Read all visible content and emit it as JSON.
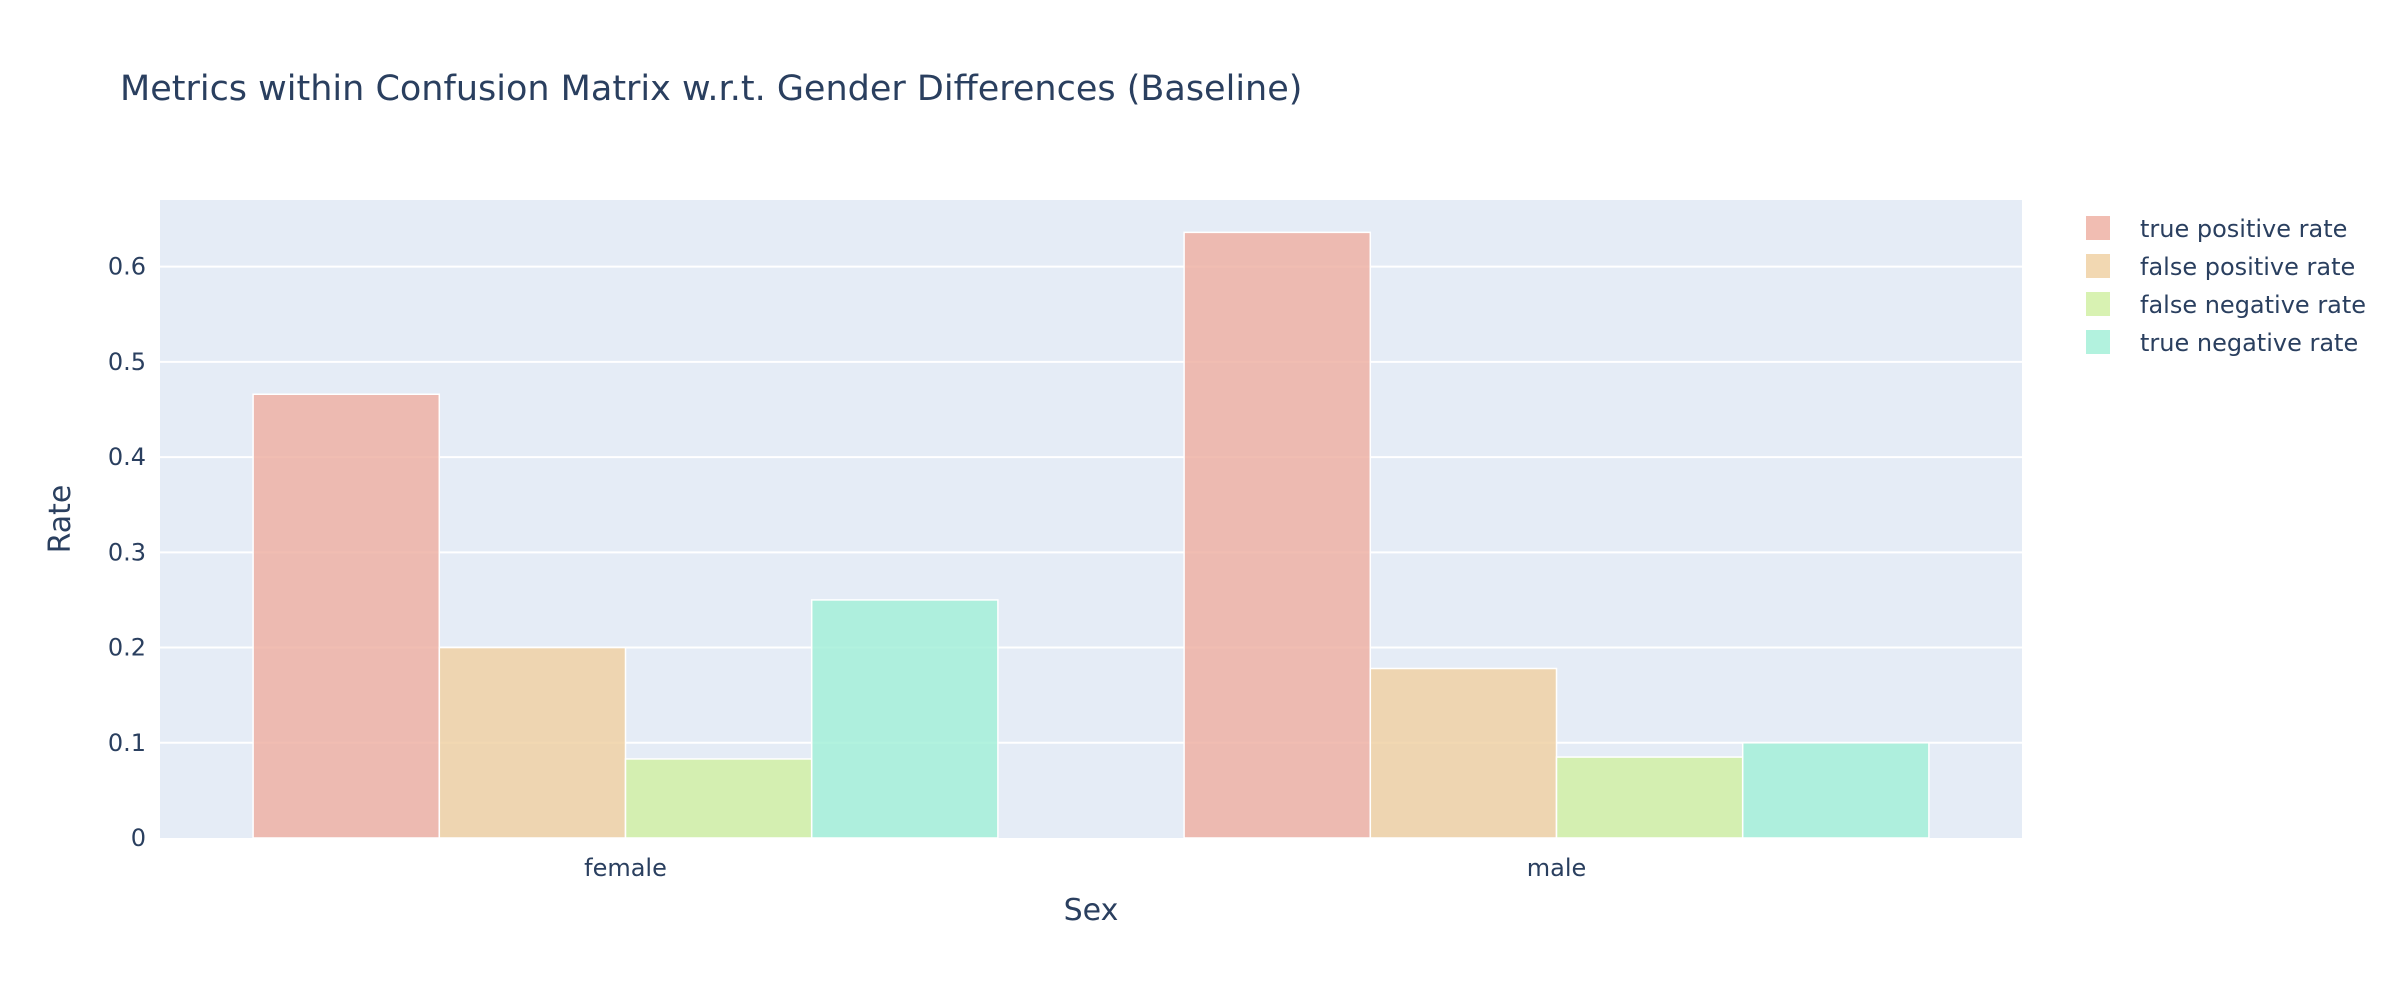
{
  "chart_data": {
    "type": "bar",
    "title": "Metrics within Confusion Matrix w.r.t. Gender Differences (Baseline)",
    "xlabel": "Sex",
    "ylabel": "Rate",
    "categories": [
      "female",
      "male"
    ],
    "ylim": [
      0,
      0.67
    ],
    "yticks": [
      "0",
      "0.1",
      "0.2",
      "0.3",
      "0.4",
      "0.5",
      "0.6"
    ],
    "grid": true,
    "legend_position": "top-right",
    "series": [
      {
        "name": "true positive rate",
        "values": [
          0.466,
          0.636
        ],
        "color": "#EFB1A4"
      },
      {
        "name": "false positive rate",
        "values": [
          0.2,
          0.178
        ],
        "color": "#F0D1A5"
      },
      {
        "name": "false negative rate",
        "values": [
          0.083,
          0.085
        ],
        "color": "#D1F0A5"
      },
      {
        "name": "true negative rate",
        "values": [
          0.25,
          0.1
        ],
        "color": "#A5F0D8"
      }
    ],
    "plot_background": "#E5ECF6",
    "gridline_color": "#ffffff",
    "text_color": "#2a3f5f"
  }
}
